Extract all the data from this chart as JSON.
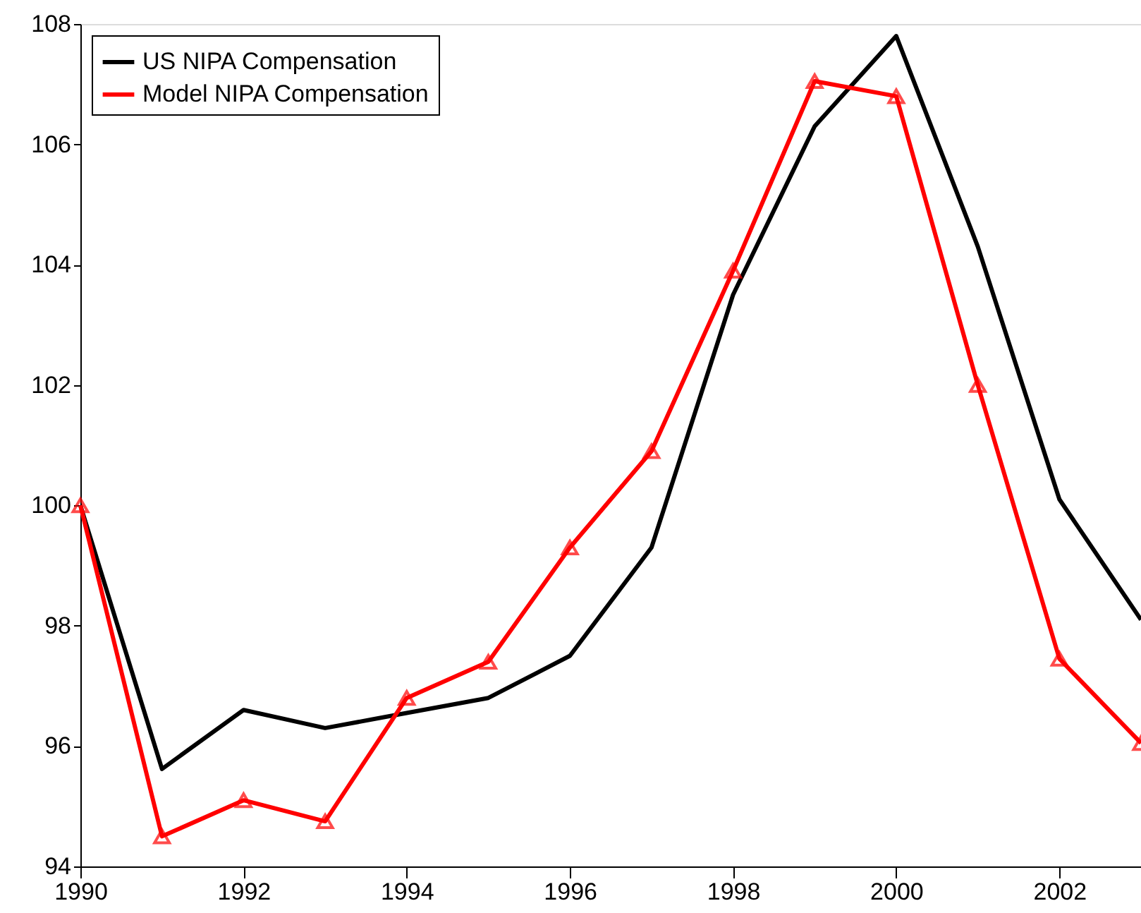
{
  "chart_data": {
    "type": "line",
    "x": [
      1990,
      1991,
      1992,
      1993,
      1994,
      1995,
      1996,
      1997,
      1998,
      1999,
      2000,
      2001,
      2002,
      2003
    ],
    "series": [
      {
        "name": "US NIPA Compensation",
        "color": "#000000",
        "marker": "none",
        "values": [
          100,
          95.62,
          96.6,
          96.3,
          96.55,
          96.8,
          97.5,
          99.3,
          103.5,
          106.3,
          107.8,
          104.3,
          100.1,
          98.1
        ]
      },
      {
        "name": "Model NIPA Compensation",
        "color": "#ff0000",
        "marker": "triangle",
        "values": [
          100,
          94.5,
          95.1,
          94.75,
          96.8,
          97.4,
          99.3,
          100.9,
          103.9,
          107.05,
          106.8,
          102.0,
          97.45,
          96.05
        ]
      }
    ],
    "xlim": [
      1990,
      2003
    ],
    "xticks": [
      1990,
      1992,
      1994,
      1996,
      1998,
      2000,
      2002
    ],
    "ylim": [
      94,
      108
    ],
    "yticks": [
      94,
      96,
      98,
      100,
      102,
      104,
      106,
      108
    ],
    "grid": false,
    "legend": "top left",
    "line_style": "solid"
  }
}
